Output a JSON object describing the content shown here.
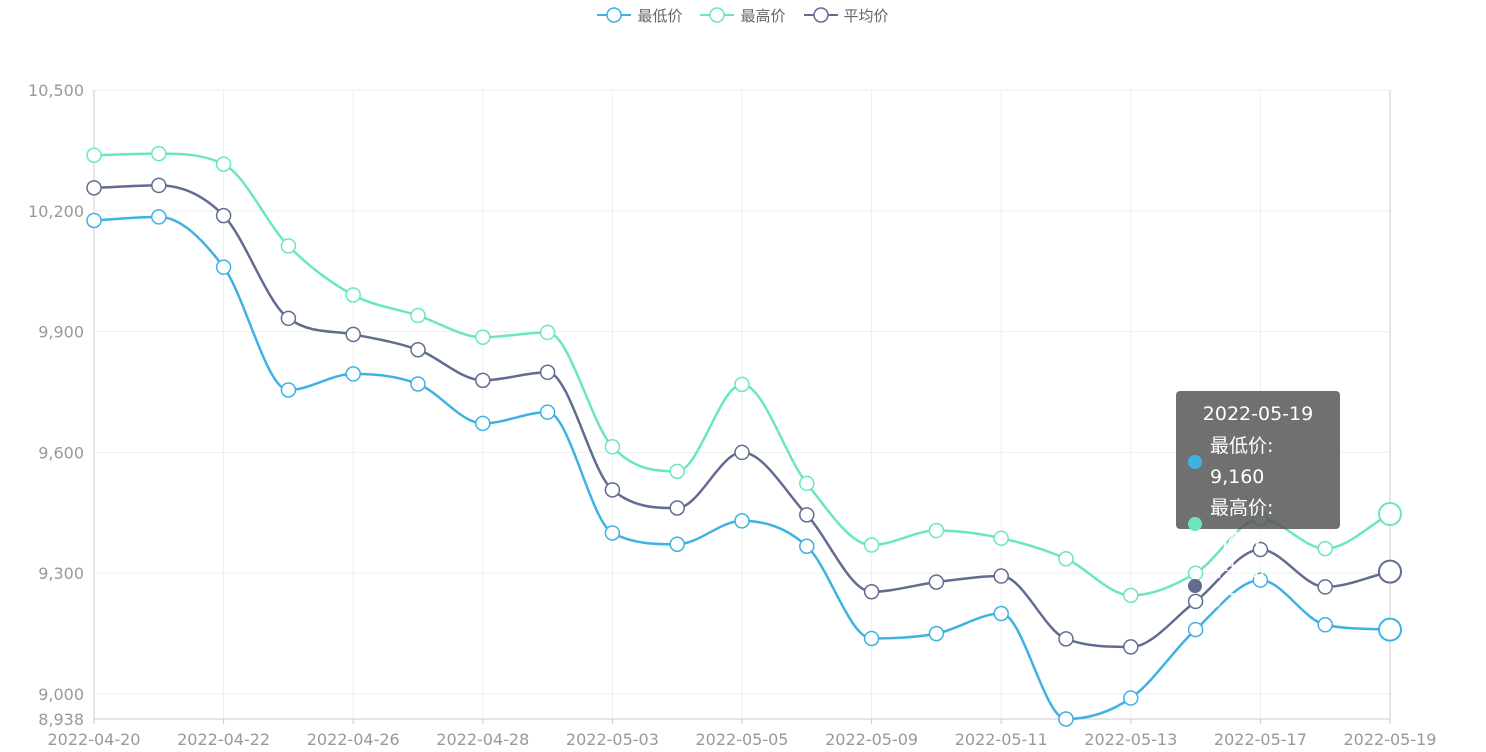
{
  "legend": [
    {
      "label": "最低价",
      "color": "#3fb1e3"
    },
    {
      "label": "最高价",
      "color": "#6be6c1"
    },
    {
      "label": "平均价",
      "color": "#626c91"
    }
  ],
  "tooltip": {
    "title": "2022-05-19",
    "rows": [
      {
        "text": "最低价: 9,160",
        "color": "#3fb1e3"
      },
      {
        "text": "最高价: 9,447",
        "color": "#6be6c1"
      },
      {
        "text": "平均价: 9,304",
        "color": "#626c91"
      }
    ]
  },
  "chart_data": {
    "type": "line",
    "smooth": true,
    "grid": true,
    "legend_position": "top-center",
    "x": [
      "2022-04-20",
      "2022-04-21",
      "2022-04-22",
      "2022-04-25",
      "2022-04-26",
      "2022-04-27",
      "2022-04-28",
      "2022-04-29",
      "2022-05-03",
      "2022-05-04",
      "2022-05-05",
      "2022-05-06",
      "2022-05-09",
      "2022-05-10",
      "2022-05-11",
      "2022-05-12",
      "2022-05-13",
      "2022-05-16",
      "2022-05-17",
      "2022-05-18",
      "2022-05-19"
    ],
    "x_tick_labels": [
      "2022-04-20",
      "2022-04-22",
      "2022-04-26",
      "2022-04-28",
      "2022-05-03",
      "2022-05-05",
      "2022-05-09",
      "2022-05-11",
      "2022-05-13",
      "2022-05-17",
      "2022-05-19"
    ],
    "y_ticks": [
      8938,
      9000,
      9300,
      9600,
      9900,
      10200,
      10500
    ],
    "y_tick_labels": [
      "8,938",
      "9,000",
      "9,300",
      "9,600",
      "9,900",
      "10,200",
      "10,500"
    ],
    "ylim": [
      8938,
      10500
    ],
    "series": [
      {
        "name": "最低价",
        "color": "#3fb1e3",
        "values": [
          10176,
          10185,
          10060,
          9755,
          9795,
          9770,
          9672,
          9700,
          9400,
          9372,
          9430,
          9367,
          9138,
          9150,
          9200,
          8938,
          8990,
          9160,
          9283,
          9172,
          9160
        ]
      },
      {
        "name": "最高价",
        "color": "#6be6c1",
        "values": [
          10338,
          10342,
          10316,
          10113,
          9991,
          9940,
          9886,
          9898,
          9614,
          9553,
          9769,
          9523,
          9370,
          9406,
          9387,
          9336,
          9245,
          9300,
          9435,
          9361,
          9447
        ]
      },
      {
        "name": "平均价",
        "color": "#626c91",
        "values": [
          10257,
          10263,
          10188,
          9933,
          9893,
          9855,
          9779,
          9799,
          9507,
          9462,
          9600,
          9445,
          9254,
          9278,
          9293,
          9137,
          9117,
          9230,
          9359,
          9266,
          9304
        ]
      }
    ],
    "highlight_index": 20
  }
}
